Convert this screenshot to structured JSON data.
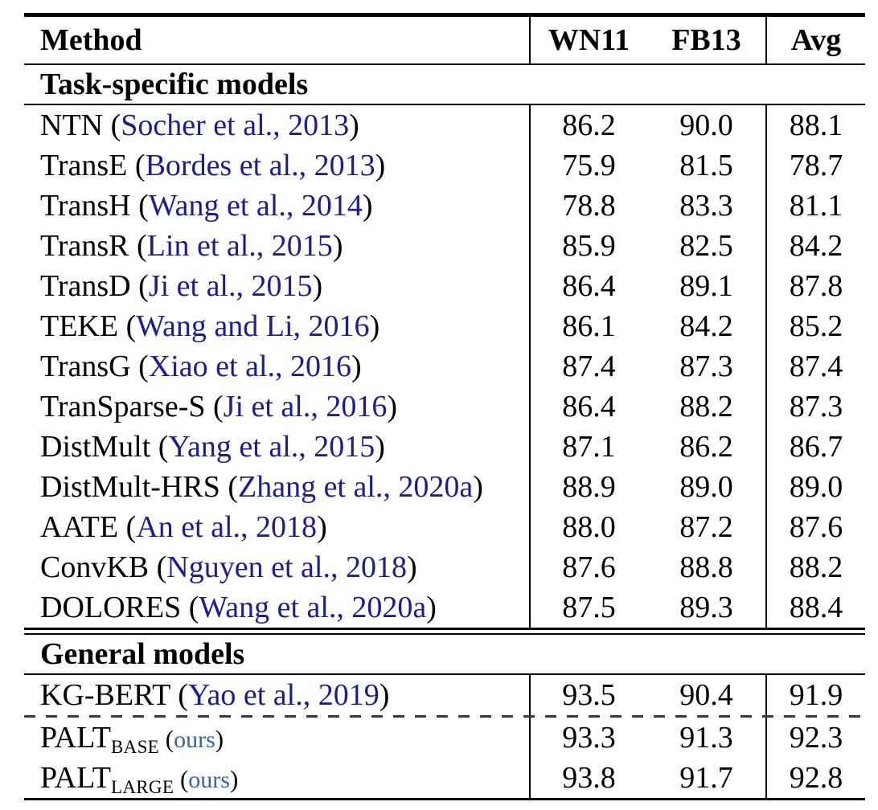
{
  "page": {
    "background": "#ffffff"
  },
  "table": {
    "header": {
      "method": "Method",
      "wn11": "WN11",
      "fb13": "FB13",
      "avg": "Avg"
    },
    "citation_format": {
      "prefix": " (",
      "suffix": ")"
    },
    "colors": {
      "text": "#000000",
      "rules": "#000000",
      "citation_link": "#1c1c94",
      "ours_link": "#2c66ae",
      "dashed_rule": "#3a3a3a"
    },
    "sections": [
      {
        "label": "Task-specific models",
        "rows": [
          {
            "name": "NTN",
            "cite": "Socher et al., 2013",
            "values": [
              "86.2",
              "90.0",
              "88.1"
            ]
          },
          {
            "name": "TransE",
            "cite": "Bordes et al., 2013",
            "values": [
              "75.9",
              "81.5",
              "78.7"
            ]
          },
          {
            "name": "TransH",
            "cite": "Wang et al., 2014",
            "values": [
              "78.8",
              "83.3",
              "81.1"
            ]
          },
          {
            "name": "TransR",
            "cite": "Lin et al., 2015",
            "values": [
              "85.9",
              "82.5",
              "84.2"
            ]
          },
          {
            "name": "TransD",
            "cite": "Ji et al., 2015",
            "values": [
              "86.4",
              "89.1",
              "87.8"
            ]
          },
          {
            "name": "TEKE",
            "cite": "Wang and Li, 2016",
            "values": [
              "86.1",
              "84.2",
              "85.2"
            ]
          },
          {
            "name": "TransG",
            "cite": "Xiao et al., 2016",
            "values": [
              "87.4",
              "87.3",
              "87.4"
            ]
          },
          {
            "name": "TranSparse-S",
            "cite": "Ji et al., 2016",
            "values": [
              "86.4",
              "88.2",
              "87.3"
            ]
          },
          {
            "name": "DistMult",
            "cite": "Yang et al., 2015",
            "values": [
              "87.1",
              "86.2",
              "86.7"
            ]
          },
          {
            "name": "DistMult-HRS",
            "cite": "Zhang et al., 2020a",
            "values": [
              "88.9",
              "89.0",
              "89.0"
            ]
          },
          {
            "name": "AATE",
            "cite": "An et al., 2018",
            "values": [
              "88.0",
              "87.2",
              "87.6"
            ]
          },
          {
            "name": "ConvKB",
            "cite": "Nguyen et al., 2018",
            "values": [
              "87.6",
              "88.8",
              "88.2"
            ]
          },
          {
            "name": "DOLORES",
            "cite": "Wang et al., 2020a",
            "values": [
              "87.5",
              "89.3",
              "88.4"
            ]
          }
        ]
      },
      {
        "label": "General models",
        "rows": [
          {
            "name": "KG-BERT",
            "cite": "Yao et al., 2019",
            "values": [
              "93.5",
              "90.4",
              "91.9"
            ]
          },
          {
            "name": "PALT",
            "name_subscript": "BASE",
            "cite": "ours",
            "cite_type": "ours",
            "dashed_rule_above": true,
            "values": [
              "93.3",
              "91.3",
              "92.3"
            ]
          },
          {
            "name": "PALT",
            "name_subscript": "LARGE",
            "cite": "ours",
            "cite_type": "ours",
            "values": [
              "93.8",
              "91.7",
              "92.8"
            ]
          }
        ]
      }
    ]
  }
}
